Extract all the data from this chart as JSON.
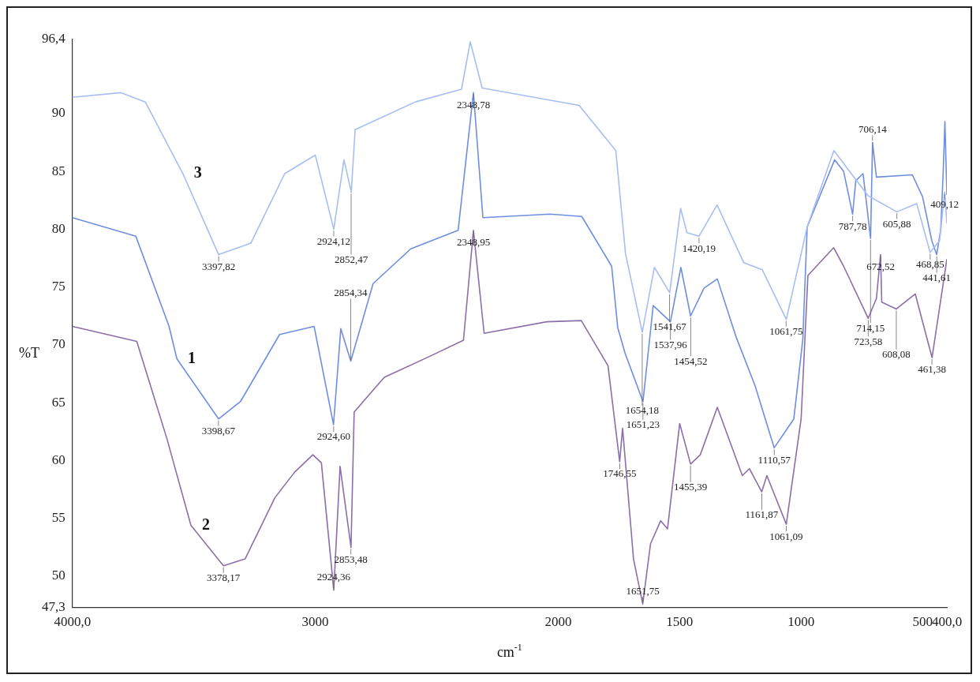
{
  "chart_data": {
    "type": "line",
    "xlabel": "cm$^{-1}$",
    "ylabel": "%T",
    "xlim": [
      4000,
      400
    ],
    "ylim": [
      47.3,
      96.4
    ],
    "xticks": [
      {
        "value": 4000,
        "label": "4000,0"
      },
      3000,
      2000,
      1500,
      1000,
      500,
      {
        "value": 400,
        "label": "400,0"
      }
    ],
    "yticks": [
      {
        "value": 47.3,
        "label": "47,3"
      },
      50,
      55,
      60,
      65,
      70,
      75,
      80,
      85,
      90,
      {
        "value": 96.4,
        "label": "96,4"
      }
    ],
    "series": [
      {
        "name": "3",
        "color": "#a8bdf0",
        "x": [
          4000,
          3800,
          3700,
          3545,
          3398,
          3265,
          3126,
          3000,
          2924,
          2882,
          2852,
          2836,
          2588,
          2398,
          2362,
          2313,
          1914,
          1763,
          1723,
          1654,
          1604,
          1541,
          1496,
          1470,
          1420,
          1346,
          1236,
          1160,
          1061,
          975,
          865,
          725,
          606,
          524,
          469,
          430,
          409,
          400
        ],
        "values": [
          91.4,
          91.8,
          91.0,
          84.8,
          77.8,
          78.8,
          84.8,
          86.4,
          80.0,
          86.0,
          83.2,
          88.6,
          91.0,
          92.1,
          96.2,
          92.2,
          90.7,
          86.8,
          77.9,
          71.1,
          76.7,
          74.5,
          81.8,
          79.7,
          79.4,
          82.1,
          77.1,
          76.5,
          72.2,
          80.2,
          86.8,
          82.9,
          81.5,
          82.2,
          78.0,
          79.0,
          83.2,
          80.5
        ]
      },
      {
        "name": "1",
        "color": "#6f8ee0",
        "x": [
          4000,
          3739,
          3602,
          3570,
          3398,
          3308,
          3147,
          3005,
          2925,
          2895,
          2854,
          2762,
          2607,
          2412,
          2349,
          2310,
          2033,
          1903,
          1780,
          1755,
          1725,
          1651,
          1609,
          1538,
          1495,
          1455,
          1400,
          1345,
          1268,
          1190,
          1111,
          1030,
          993,
          975,
          862,
          825,
          788,
          775,
          745,
          714,
          706,
          690,
          542,
          500,
          462,
          442,
          425,
          415,
          408,
          400
        ],
        "values": [
          81.0,
          79.4,
          71.6,
          68.8,
          63.6,
          65.1,
          70.9,
          71.6,
          63.1,
          71.4,
          68.6,
          75.3,
          78.3,
          79.9,
          91.8,
          81.0,
          81.3,
          81.1,
          76.8,
          71.5,
          69.3,
          65.1,
          73.4,
          72.0,
          76.7,
          72.5,
          74.9,
          75.7,
          70.7,
          66.5,
          61.1,
          63.6,
          70.5,
          80.2,
          86.0,
          85.0,
          81.3,
          84.2,
          84.8,
          79.2,
          87.5,
          84.5,
          84.7,
          82.8,
          79.0,
          77.8,
          80.0,
          85.0,
          89.3,
          83.0
        ]
      },
      {
        "name": "2",
        "color": "#8a6fa8",
        "x": [
          4000,
          3735,
          3611,
          3512,
          3378,
          3289,
          3166,
          3085,
          3010,
          2975,
          2924,
          2898,
          2853,
          2840,
          2716,
          2520,
          2390,
          2349,
          2305,
          2047,
          1905,
          1795,
          1747,
          1735,
          1690,
          1652,
          1620,
          1578,
          1550,
          1500,
          1455,
          1415,
          1345,
          1242,
          1213,
          1162,
          1141,
          1061,
          1000,
          972,
          866,
          825,
          724,
          690,
          673,
          668,
          608,
          530,
          461,
          400
        ],
        "values": [
          71.6,
          70.3,
          61.9,
          54.4,
          50.9,
          51.5,
          56.8,
          59.0,
          60.5,
          59.8,
          48.8,
          59.5,
          52.5,
          64.2,
          67.2,
          69.1,
          70.4,
          79.9,
          71.0,
          72.0,
          72.1,
          68.2,
          59.9,
          62.8,
          51.5,
          47.6,
          52.8,
          54.8,
          54.1,
          63.2,
          59.7,
          60.5,
          64.6,
          58.7,
          59.3,
          57.3,
          58.7,
          54.5,
          63.6,
          76.0,
          78.4,
          76.8,
          72.3,
          74.0,
          77.8,
          73.7,
          73.1,
          74.4,
          68.9,
          77.4
        ]
      }
    ],
    "annotations": [
      {
        "text": "3397,82",
        "x": 3397.82,
        "y": 77.8
      },
      {
        "text": "2924,12",
        "x": 2924.12,
        "y": 80.0
      },
      {
        "text": "2852,47",
        "x": 2852.47,
        "y": 83.2
      },
      {
        "text": "2348,78",
        "x": 2348.78,
        "y": 91.8
      },
      {
        "text": "1654,18",
        "x": 1654.18,
        "y": 71.1
      },
      {
        "text": "1541,67",
        "x": 1541.67,
        "y": 74.5
      },
      {
        "text": "1420,19",
        "x": 1420.19,
        "y": 79.4
      },
      {
        "text": "1061,75",
        "x": 1061.75,
        "y": 72.2
      },
      {
        "text": "787,78",
        "x": 787.78,
        "y": 81.3
      },
      {
        "text": "706,14",
        "x": 706.14,
        "y": 87.5
      },
      {
        "text": "714,15",
        "x": 714.15,
        "y": 79.2
      },
      {
        "text": "605,88",
        "x": 605.88,
        "y": 81.5
      },
      {
        "text": "468,85",
        "x": 468.85,
        "y": 78.0
      },
      {
        "text": "409,12",
        "x": 409.12,
        "y": 83.2
      },
      {
        "text": "441,61",
        "x": 441.61,
        "y": 77.8
      },
      {
        "text": "3398,67",
        "x": 3398.67,
        "y": 63.6
      },
      {
        "text": "2924,60",
        "x": 2924.6,
        "y": 63.1
      },
      {
        "text": "2854,34",
        "x": 2854.34,
        "y": 68.6
      },
      {
        "text": "2348,95",
        "x": 2348.95,
        "y": 79.9
      },
      {
        "text": "1651,23",
        "x": 1651.23,
        "y": 65.1
      },
      {
        "text": "1537,96",
        "x": 1537.96,
        "y": 72.0
      },
      {
        "text": "1454,52",
        "x": 1454.52,
        "y": 72.5
      },
      {
        "text": "1110,57",
        "x": 1110.57,
        "y": 61.1
      },
      {
        "text": "3378,17",
        "x": 3378.17,
        "y": 50.9
      },
      {
        "text": "2924,36",
        "x": 2924.36,
        "y": 48.8
      },
      {
        "text": "2853,48",
        "x": 2853.48,
        "y": 52.5
      },
      {
        "text": "1746,55",
        "x": 1746.55,
        "y": 59.9
      },
      {
        "text": "1651,75",
        "x": 1651.75,
        "y": 47.6
      },
      {
        "text": "1455,39",
        "x": 1455.39,
        "y": 59.7
      },
      {
        "text": "1161,87",
        "x": 1161.87,
        "y": 57.3
      },
      {
        "text": "1061,09",
        "x": 1061.09,
        "y": 54.5
      },
      {
        "text": "723,58",
        "x": 723.58,
        "y": 72.3
      },
      {
        "text": "672,52",
        "x": 672.52,
        "y": 77.8
      },
      {
        "text": "608,08",
        "x": 608.08,
        "y": 73.1
      },
      {
        "text": "461,38",
        "x": 461.38,
        "y": 68.9
      }
    ]
  }
}
